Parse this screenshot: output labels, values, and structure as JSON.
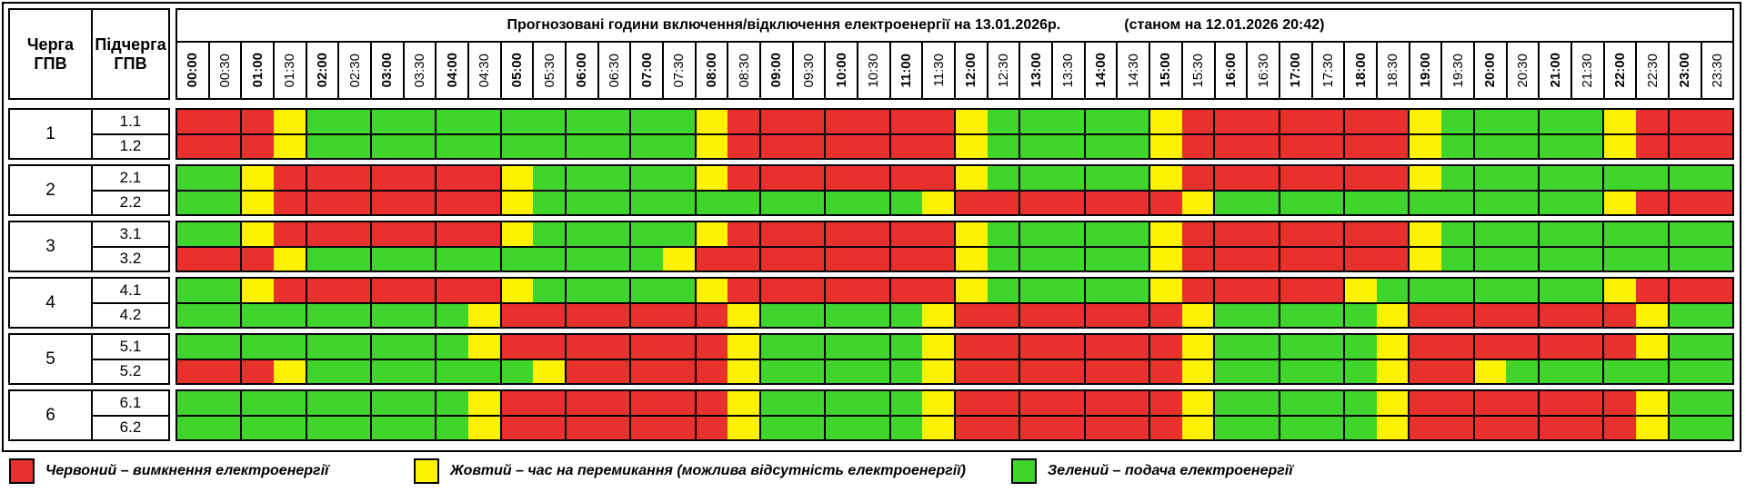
{
  "title": {
    "main": "Прогнозовані години включення/відключення електроенергії на 13.01.2026р.",
    "status": "(станом на 12.01.2026 20:42)"
  },
  "corner": {
    "queue_header": "Черга\nГПВ",
    "subqueue_header": "Підчерга\nГПВ"
  },
  "times": [
    "00:00",
    "00:30",
    "01:00",
    "01:30",
    "02:00",
    "02:30",
    "03:00",
    "03:30",
    "04:00",
    "04:30",
    "05:00",
    "05:30",
    "06:00",
    "06:30",
    "07:00",
    "07:30",
    "08:00",
    "08:30",
    "09:00",
    "09:30",
    "10:00",
    "10:30",
    "11:00",
    "11:30",
    "12:00",
    "12:30",
    "13:00",
    "13:30",
    "14:00",
    "14:30",
    "15:00",
    "15:30",
    "16:00",
    "16:30",
    "17:00",
    "17:30",
    "18:00",
    "18:30",
    "19:00",
    "19:30",
    "20:00",
    "20:30",
    "21:00",
    "21:30",
    "22:00",
    "22:30",
    "23:00",
    "23:30"
  ],
  "colors": {
    "R": "#e8312d",
    "Y": "#fff200",
    "G": "#3fd52c"
  },
  "groups": [
    {
      "queue": "1",
      "rows": [
        {
          "label": "1.1",
          "slots": "RRRYGGGGGGGGGGGGYRRRRRRRYGGGGGYRRRRRRRYGGGGGYRRR"
        },
        {
          "label": "1.2",
          "slots": "RRRYGGGGGGGGGGGGYRRRRRRRYGGGGGYRRRRRRRYGGGGGYRRR"
        }
      ]
    },
    {
      "queue": "2",
      "rows": [
        {
          "label": "2.1",
          "slots": "GGYRRRRRRRYGGGGGYRRRRRRRYGGGGGYRRRRRRRYGGGGGGGGG"
        },
        {
          "label": "2.2",
          "slots": "GGYRRRRRRRYGGGGGGGGGGGGYRRRRRRRYGGGGGGGGGGGGYRRR"
        }
      ]
    },
    {
      "queue": "3",
      "rows": [
        {
          "label": "3.1",
          "slots": "GGYRRRRRRRYGGGGGYRRRRRRRYGGGGGYRRRRRRRYGGGGGGGGG"
        },
        {
          "label": "3.2",
          "slots": "RRRYGGGGGGGGGGGYRRRRRRRRYGGGGGYRRRRRRRYGGGGGGGGG"
        }
      ]
    },
    {
      "queue": "4",
      "rows": [
        {
          "label": "4.1",
          "slots": "GGYRRRRRRRYGGGGGYRRRRRRRYGGGGGYRRRRRYGGGGGGGYRRR"
        },
        {
          "label": "4.2",
          "slots": "GGGGGGGGGYRRRRRRRYGGGGGYRRRRRRRYGGGGGYRRRRRRRYGG"
        }
      ]
    },
    {
      "queue": "5",
      "rows": [
        {
          "label": "5.1",
          "slots": "GGGGGGGGGYRRRRRRRYGGGGGYRRRRRRRYGGGGGYRRRRRRRYGG"
        },
        {
          "label": "5.2",
          "slots": "RRRYGGGGGGGYRRRRRYGGGGGYRRRRRRRYGGGGGYRRYGGGGGGG"
        }
      ]
    },
    {
      "queue": "6",
      "rows": [
        {
          "label": "6.1",
          "slots": "GGGGGGGGGYRRRRRRRYGGGGGYRRRRRRRYGGGGGYRRRRRRRYGG"
        },
        {
          "label": "6.2",
          "slots": "GGGGGGGGGYRRRRRRRYGGGGGYRRRRRRRYGGGGGYRRRRRRRYGG"
        }
      ]
    }
  ],
  "legend": [
    {
      "key": "R",
      "label": "Червоний – вимкнення електроенергії"
    },
    {
      "key": "Y",
      "label": "Жовтий – час на перемикання (можлива відсутність електроенергії)"
    },
    {
      "key": "G",
      "label": "Зелений – подача електроенергії"
    }
  ]
}
